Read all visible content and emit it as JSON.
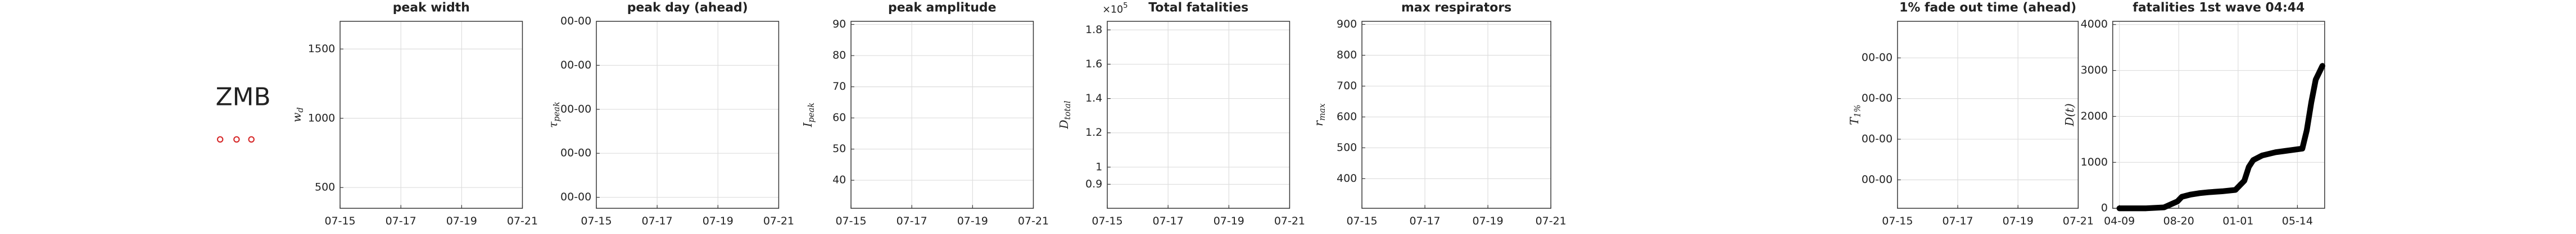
{
  "label": "ZMB",
  "chart_data": [
    {
      "type": "line",
      "title": "peak width",
      "ylabel": {
        "text": "w",
        "sub": "d"
      },
      "xlim": [
        0,
        6
      ],
      "xticks": [
        {
          "value": 0,
          "label": "07-15"
        },
        {
          "value": 2,
          "label": "07-17"
        },
        {
          "value": 4,
          "label": "07-19"
        },
        {
          "value": 6,
          "label": "07-21"
        }
      ],
      "ylim": [
        350,
        1700
      ],
      "yticks": [
        500,
        1000,
        1500
      ],
      "grid": true
    },
    {
      "type": "line",
      "title": "peak day (ahead)",
      "ylabel": {
        "text": "τ",
        "sub": "peak"
      },
      "xlim": [
        0,
        6
      ],
      "xticks": [
        {
          "value": 0,
          "label": "07-15"
        },
        {
          "value": 2,
          "label": "07-17"
        },
        {
          "value": 4,
          "label": "07-19"
        },
        {
          "value": 6,
          "label": "07-21"
        }
      ],
      "ylim": [
        -0.25,
        4
      ],
      "yticks": [
        {
          "value": 0,
          "label": "00-00"
        },
        {
          "value": 1,
          "label": "00-00"
        },
        {
          "value": 2,
          "label": "00-00"
        },
        {
          "value": 3,
          "label": "00-00"
        },
        {
          "value": 4,
          "label": "00-00"
        }
      ],
      "grid": true
    },
    {
      "type": "line",
      "title": "peak amplitude",
      "ylabel": {
        "text": "I",
        "sub": "peak"
      },
      "xlim": [
        0,
        6
      ],
      "xticks": [
        {
          "value": 0,
          "label": "07-15"
        },
        {
          "value": 2,
          "label": "07-17"
        },
        {
          "value": 4,
          "label": "07-19"
        },
        {
          "value": 6,
          "label": "07-21"
        }
      ],
      "ylim": [
        31,
        91
      ],
      "yticks": [
        40,
        50,
        60,
        70,
        80,
        90
      ],
      "grid": true
    },
    {
      "type": "line",
      "title": "Total fatalities",
      "annotation": {
        "text": "×10",
        "sup": "5"
      },
      "ylabel": {
        "text": "D",
        "sub": "total"
      },
      "xlim": [
        0,
        6
      ],
      "xticks": [
        {
          "value": 0,
          "label": "07-15"
        },
        {
          "value": 2,
          "label": "07-17"
        },
        {
          "value": 4,
          "label": "07-19"
        },
        {
          "value": 6,
          "label": "07-21"
        }
      ],
      "ylim": [
        0.76,
        1.85
      ],
      "yticks": [
        0.9,
        1,
        1.2,
        1.4,
        1.6,
        1.8
      ],
      "grid": true
    },
    {
      "type": "line",
      "title": "max respirators",
      "ylabel": {
        "text": "r",
        "sub": "max"
      },
      "xlim": [
        0,
        6
      ],
      "xticks": [
        {
          "value": 0,
          "label": "07-15"
        },
        {
          "value": 2,
          "label": "07-17"
        },
        {
          "value": 4,
          "label": "07-19"
        },
        {
          "value": 6,
          "label": "07-21"
        }
      ],
      "ylim": [
        304,
        910
      ],
      "yticks": [
        400,
        500,
        600,
        700,
        800,
        900
      ],
      "grid": true
    },
    {
      "type": "line",
      "title": "1% fade out time (ahead)",
      "ylabel": {
        "text": "T",
        "sub": "1%"
      },
      "xlim": [
        0,
        6
      ],
      "xticks": [
        {
          "value": 0,
          "label": "07-15"
        },
        {
          "value": 2,
          "label": "07-17"
        },
        {
          "value": 4,
          "label": "07-19"
        },
        {
          "value": 6,
          "label": "07-21"
        }
      ],
      "ylim": [
        -0.7,
        3.9
      ],
      "yticks": [
        {
          "value": 0,
          "label": "00-00"
        },
        {
          "value": 1,
          "label": "00-00"
        },
        {
          "value": 2,
          "label": "00-00"
        },
        {
          "value": 3,
          "label": "00-00"
        }
      ],
      "grid": true
    },
    {
      "type": "line",
      "title": "fatalities 1st wave 04:44",
      "ylabel": {
        "text": "D(t)"
      },
      "xlim": [
        -15,
        460
      ],
      "xticks": [
        {
          "value": 0,
          "label": "04-09"
        },
        {
          "value": 133,
          "label": "08-20"
        },
        {
          "value": 266,
          "label": "01-01"
        },
        {
          "value": 399,
          "label": "05-14"
        }
      ],
      "ylim": [
        0,
        4070
      ],
      "yticks": [
        0,
        1000,
        2000,
        3000,
        4000
      ],
      "grid": true,
      "x": [
        0,
        60,
        100,
        130,
        140,
        160,
        180,
        200,
        230,
        260,
        280,
        290,
        300,
        320,
        350,
        380,
        410,
        420,
        430,
        440,
        455
      ],
      "series": [
        {
          "color": "#000000",
          "values": [
            0,
            0,
            20,
            150,
            250,
            300,
            330,
            350,
            370,
            400,
            600,
            900,
            1050,
            1150,
            1220,
            1260,
            1300,
            1700,
            2300,
            2800,
            3100
          ]
        }
      ]
    }
  ]
}
